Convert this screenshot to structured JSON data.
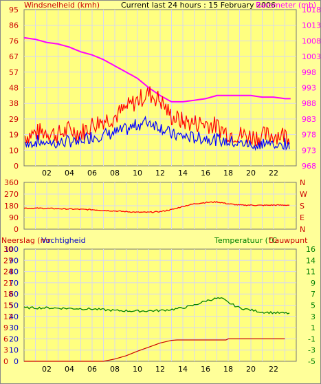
{
  "colors": {
    "background": "#ffff99",
    "plot_bg": "#ffff80",
    "grid": "#d8d8f0",
    "wind_gust": "#ff0000",
    "wind_avg": "#0000ff",
    "barometer": "#ff00ff",
    "direction": "#ff0000",
    "rain": "#cc0000",
    "humidity": "#0000cc",
    "temperature": "#007700",
    "dewpoint": "#cc0000",
    "rain_line": "#cc0000",
    "temp_line": "#008000"
  },
  "header": {
    "left_label": "Windsnelheid (kmh)",
    "center_label": "Current last 24 hours : 15 February 2006",
    "right_label": "Barometer (mb)"
  },
  "bottom_header": {
    "rain_label": "Neerslag (mr",
    "humidity_label": "Vochtigheid",
    "temp_label": "Temperatuur (°C",
    "dew_label": "Dauwpunt"
  },
  "chart_data": [
    {
      "type": "line",
      "title": "Current last 24 hours : 15 February 2006",
      "x_ticks": [
        "02",
        "04",
        "06",
        "08",
        "10",
        "12",
        "14",
        "16",
        "18",
        "20",
        "22"
      ],
      "y_left_label": "Windsnelheid (kmh)",
      "y_left_ticks": [
        "0",
        "10",
        "19",
        "29",
        "38",
        "48",
        "57",
        "67",
        "76",
        "86",
        "95"
      ],
      "y_left_range": [
        0,
        95
      ],
      "y_right_label": "Barometer (mb)",
      "y_right_ticks": [
        "968",
        "973",
        "978",
        "983",
        "988",
        "993",
        "998",
        "1003",
        "1008",
        "1013",
        "1018"
      ],
      "y_right_range": [
        968,
        1018
      ],
      "series": [
        {
          "axis": "right",
          "points": [
            [
              0,
              1009
            ],
            [
              1,
              1008.5
            ],
            [
              2,
              1007.5
            ],
            [
              3,
              1007
            ],
            [
              4,
              1006
            ],
            [
              5,
              1004.5
            ],
            [
              6,
              1003.5
            ],
            [
              7,
              1002
            ],
            [
              8,
              1000
            ],
            [
              9,
              998
            ],
            [
              10,
              996
            ],
            [
              11,
              993
            ],
            [
              12,
              990.5
            ],
            [
              13,
              988.5
            ],
            [
              14,
              988.5
            ],
            [
              15,
              989
            ],
            [
              16,
              989.5
            ],
            [
              17,
              990.5
            ],
            [
              18,
              990.5
            ],
            [
              19,
              990.5
            ],
            [
              20,
              990.5
            ],
            [
              21,
              990
            ],
            [
              22,
              990
            ],
            [
              23,
              989.5
            ]
          ]
        },
        {
          "axis": "left",
          "points": [
            [
              0,
              18
            ],
            [
              1,
              20
            ],
            [
              2,
              21
            ],
            [
              3,
              19
            ],
            [
              4,
              22
            ],
            [
              5,
              20
            ],
            [
              6,
              25
            ],
            [
              7,
              28
            ],
            [
              8,
              30
            ],
            [
              9,
              35
            ],
            [
              10,
              40
            ],
            [
              11,
              44
            ],
            [
              12,
              40
            ],
            [
              13,
              30
            ],
            [
              14,
              27
            ],
            [
              15,
              26
            ],
            [
              16,
              26
            ],
            [
              17,
              24
            ],
            [
              18,
              20
            ],
            [
              19,
              19
            ],
            [
              20,
              18
            ],
            [
              21,
              18
            ],
            [
              22,
              19
            ],
            [
              23,
              19
            ]
          ]
        },
        {
          "axis": "left",
          "points": [
            [
              0,
              14
            ],
            [
              1,
              15
            ],
            [
              2,
              15
            ],
            [
              3,
              14
            ],
            [
              4,
              15
            ],
            [
              5,
              16
            ],
            [
              6,
              18
            ],
            [
              7,
              19
            ],
            [
              8,
              20
            ],
            [
              9,
              22
            ],
            [
              10,
              25
            ],
            [
              11,
              27
            ],
            [
              12,
              24
            ],
            [
              13,
              19
            ],
            [
              14,
              18
            ],
            [
              15,
              17
            ],
            [
              16,
              17
            ],
            [
              17,
              16
            ],
            [
              18,
              15
            ],
            [
              19,
              14
            ],
            [
              20,
              14
            ],
            [
              21,
              14
            ],
            [
              22,
              14
            ],
            [
              23,
              14
            ]
          ]
        }
      ]
    },
    {
      "type": "line",
      "y_left_ticks": [
        "0",
        "90",
        "180",
        "270",
        "360"
      ],
      "y_left_range": [
        0,
        360
      ],
      "y_right_ticks": [
        "N",
        "W",
        "S",
        "E",
        "N"
      ],
      "series": [
        {
          "points": [
            [
              0,
              162
            ],
            [
              2,
              160
            ],
            [
              4,
              155
            ],
            [
              6,
              150
            ],
            [
              8,
              140
            ],
            [
              10,
              130
            ],
            [
              11,
              130
            ],
            [
              12,
              135
            ],
            [
              13,
              150
            ],
            [
              14,
              175
            ],
            [
              15,
              195
            ],
            [
              16,
              205
            ],
            [
              17,
              210
            ],
            [
              18,
              195
            ],
            [
              19,
              185
            ],
            [
              20,
              185
            ],
            [
              21,
              183
            ],
            [
              22,
              185
            ],
            [
              23,
              185
            ]
          ]
        }
      ]
    },
    {
      "type": "line",
      "y_left1_ticks": [
        "0",
        "10",
        "20",
        "30",
        "40",
        "50",
        "60",
        "70",
        "80",
        "90",
        "100"
      ],
      "y_left1_range": [
        0,
        100
      ],
      "y_left2_ticks": [
        "0",
        "3",
        "6",
        "9",
        "12",
        "15",
        "18",
        "21",
        "24",
        "27",
        "30"
      ],
      "y_left2_range": [
        0,
        30
      ],
      "y_right_ticks": [
        "-5",
        "-3",
        "-1",
        "1",
        "3",
        "5",
        "7",
        "9",
        "11",
        "14",
        "16"
      ],
      "y_right_range": [
        -5,
        16
      ],
      "series": [
        {
          "name": "Temperatuur",
          "axis": "right",
          "points": [
            [
              0,
              5
            ],
            [
              2,
              5
            ],
            [
              4,
              4.9
            ],
            [
              6,
              4.8
            ],
            [
              8,
              4.5
            ],
            [
              10,
              4.4
            ],
            [
              12,
              4.5
            ],
            [
              13,
              4.7
            ],
            [
              14,
              5
            ],
            [
              15,
              5.5
            ],
            [
              16,
              6.3
            ],
            [
              17,
              6.8
            ],
            [
              17.5,
              6.7
            ],
            [
              18,
              6
            ],
            [
              19,
              5
            ],
            [
              20,
              4.6
            ],
            [
              21,
              4.2
            ],
            [
              22,
              4.1
            ],
            [
              23,
              4
            ]
          ]
        },
        {
          "name": "Neerslag",
          "axis": "left2",
          "points": [
            [
              0,
              0
            ],
            [
              7,
              0
            ],
            [
              8,
              0.6
            ],
            [
              9,
              1.5
            ],
            [
              10,
              2.7
            ],
            [
              11,
              3.8
            ],
            [
              12,
              4.9
            ],
            [
              13,
              5.6
            ],
            [
              13.5,
              5.7
            ],
            [
              17.8,
              5.7
            ],
            [
              18,
              6
            ],
            [
              23,
              6
            ]
          ]
        }
      ]
    }
  ]
}
